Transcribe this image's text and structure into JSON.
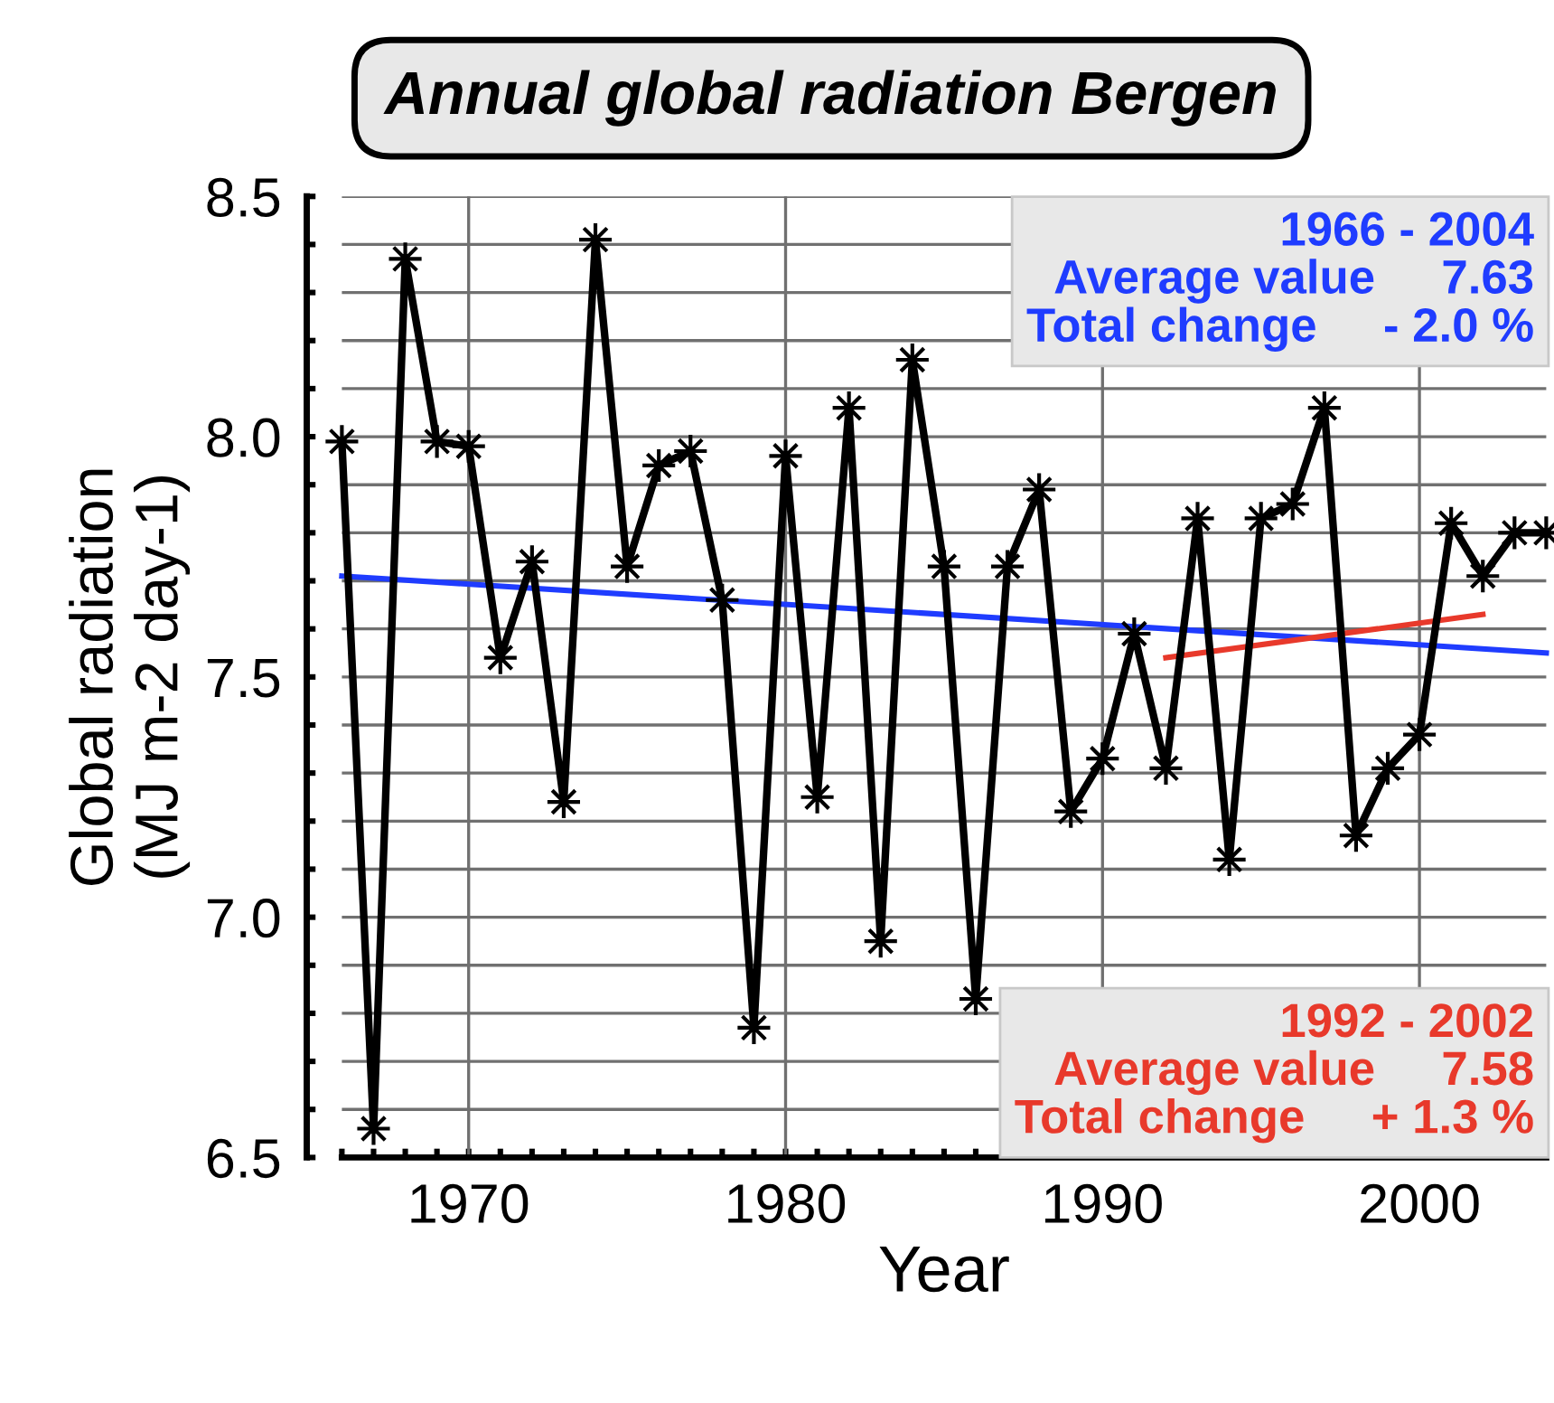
{
  "chart_data": {
    "type": "line",
    "title": "Annual global radiation Bergen",
    "xlabel": "Year",
    "ylabel": "Global radiation\n(MJ m-2 day-1)",
    "x": [
      1966,
      1967,
      1968,
      1969,
      1970,
      1971,
      1972,
      1973,
      1974,
      1975,
      1976,
      1977,
      1978,
      1979,
      1980,
      1981,
      1982,
      1983,
      1984,
      1985,
      1986,
      1987,
      1988,
      1989,
      1990,
      1991,
      1992,
      1993,
      1994,
      1995,
      1996,
      1997,
      1998,
      1999,
      2000,
      2001,
      2002,
      2003,
      2004
    ],
    "series": [
      {
        "color": "#000000",
        "marker": "star",
        "values": [
          7.99,
          6.56,
          8.37,
          7.99,
          7.98,
          7.54,
          7.74,
          7.24,
          8.41,
          7.73,
          7.94,
          7.97,
          7.66,
          6.77,
          7.96,
          7.25,
          8.06,
          6.95,
          8.16,
          7.73,
          6.83,
          7.73,
          7.89,
          7.22,
          7.33,
          7.59,
          7.31,
          7.83,
          7.12,
          7.83,
          7.86,
          8.06,
          7.17,
          7.31,
          7.38,
          7.82,
          7.71,
          7.8,
          7.8
        ]
      },
      {
        "type": "line",
        "color": "#1f3cff",
        "marker": "none",
        "x": [
          1966,
          2004
        ],
        "values": [
          7.71,
          7.55
        ]
      },
      {
        "type": "line",
        "color": "#e8392b",
        "marker": "none",
        "x": [
          1992,
          2002
        ],
        "values": [
          7.54,
          7.63
        ]
      }
    ],
    "annotations": [
      "1966 - 2004\nAverage value     7.63\nTotal change     - 2.0 %",
      "1992 - 2002\nAverage value     7.58\nTotal change     + 1.3 %"
    ],
    "xlim": [
      1966,
      2004
    ],
    "xticks": [
      {
        "value": 1966,
        "label": null
      },
      {
        "value": 1967,
        "label": null
      },
      {
        "value": 1968,
        "label": null
      },
      {
        "value": 1969,
        "label": null
      },
      1970,
      {
        "value": 1971,
        "label": null
      },
      {
        "value": 1972,
        "label": null
      },
      {
        "value": 1973,
        "label": null
      },
      {
        "value": 1974,
        "label": null
      },
      {
        "value": 1975,
        "label": null
      },
      {
        "value": 1976,
        "label": null
      },
      {
        "value": 1977,
        "label": null
      },
      {
        "value": 1978,
        "label": null
      },
      {
        "value": 1979,
        "label": null
      },
      1980,
      {
        "value": 1981,
        "label": null
      },
      {
        "value": 1982,
        "label": null
      },
      {
        "value": 1983,
        "label": null
      },
      {
        "value": 1984,
        "label": null
      },
      {
        "value": 1985,
        "label": null
      },
      {
        "value": 1986,
        "label": null
      },
      {
        "value": 1987,
        "label": null
      },
      {
        "value": 1988,
        "label": null
      },
      {
        "value": 1989,
        "label": null
      },
      1990,
      {
        "value": 1991,
        "label": null
      },
      {
        "value": 1992,
        "label": null
      },
      {
        "value": 1993,
        "label": null
      },
      {
        "value": 1994,
        "label": null
      },
      {
        "value": 1995,
        "label": null
      },
      {
        "value": 1996,
        "label": null
      },
      {
        "value": 1997,
        "label": null
      },
      {
        "value": 1998,
        "label": null
      },
      {
        "value": 1999,
        "label": null
      },
      2000,
      {
        "value": 2001,
        "label": null
      },
      {
        "value": 2002,
        "label": null
      },
      {
        "value": 2003,
        "label": null
      },
      {
        "value": 2004,
        "label": null
      }
    ],
    "ylim": [
      6.5,
      8.5
    ],
    "yticks": [
      6.5,
      {
        "value": 6.6,
        "label": null
      },
      {
        "value": 6.7,
        "label": null
      },
      {
        "value": 6.8,
        "label": null
      },
      {
        "value": 6.9,
        "label": null
      },
      {
        "value": 7.0,
        "label": "7.0"
      },
      {
        "value": 7.1,
        "label": null
      },
      {
        "value": 7.2,
        "label": null
      },
      {
        "value": 7.3,
        "label": null
      },
      {
        "value": 7.4,
        "label": null
      },
      7.5,
      {
        "value": 7.6,
        "label": null
      },
      {
        "value": 7.7,
        "label": null
      },
      {
        "value": 7.8,
        "label": null
      },
      {
        "value": 7.9,
        "label": null
      },
      {
        "value": 8.0,
        "label": "8.0"
      },
      {
        "value": 8.1,
        "label": null
      },
      {
        "value": 8.2,
        "label": null
      },
      {
        "value": 8.3,
        "label": null
      },
      {
        "value": 8.4,
        "label": null
      },
      8.5
    ],
    "grid": true,
    "line_style": "solid"
  }
}
